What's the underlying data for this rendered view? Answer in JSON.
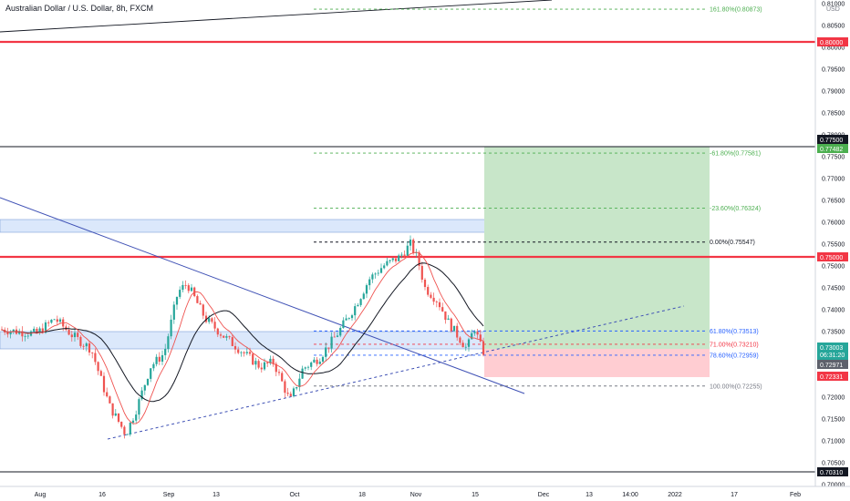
{
  "header": {
    "title": "Australian Dollar / U.S. Dollar, 8h, FXCM"
  },
  "price_axis": {
    "currency_label": "USD",
    "ticks": [
      "0.81000",
      "0.80500",
      "0.80000",
      "0.79500",
      "0.79000",
      "0.78500",
      "0.78000",
      "0.77500",
      "0.77000",
      "0.76500",
      "0.76000",
      "0.75500",
      "0.75000",
      "0.74500",
      "0.74000",
      "0.73500",
      "0.73000",
      "0.72500",
      "0.72000",
      "0.71500",
      "0.71000",
      "0.70500",
      "0.70000"
    ]
  },
  "time_axis": {
    "ticks": [
      "Aug",
      "16",
      "Sep",
      "13",
      "Oct",
      "18",
      "Nov",
      "15",
      "Dec",
      "13",
      "14:00",
      "2022",
      "17",
      "Feb"
    ]
  },
  "price_tags": {
    "p0800": "0.80000",
    "p0775": "0.77500",
    "p07748": "0.77482",
    "p0750": "0.75000",
    "last_price": "0.73003",
    "countdown": "06:31:20",
    "p07297": "0.72971",
    "p07233": "0.72331",
    "p0703": "0.70310"
  },
  "fib_levels": [
    {
      "label": "161.80%(0.80873)",
      "price": 0.80873,
      "color": "#4caf50"
    },
    {
      "label": "-61.80%(0.77581)",
      "price": 0.77581,
      "color": "#4caf50"
    },
    {
      "label": "-23.60%(0.76324)",
      "price": 0.76324,
      "color": "#4caf50"
    },
    {
      "label": "0.00%(0.75547)",
      "price": 0.75547,
      "color": "#131722"
    },
    {
      "label": "61.80%(0.73513)",
      "price": 0.73513,
      "color": "#2962ff"
    },
    {
      "label": "71.00%(0.73210)",
      "price": 0.7321,
      "color": "#f23645"
    },
    {
      "label": "78.60%(0.72959)",
      "price": 0.72959,
      "color": "#2962ff"
    },
    {
      "label": "100.00%(0.72255)",
      "price": 0.72255,
      "color": "#787b86"
    }
  ],
  "colors": {
    "bull": "#26a69a",
    "bear": "#ef5350",
    "resistance": "#f23645",
    "support_zone": "#dbe8fb",
    "profit_zone": "#c8e6c9",
    "loss_zone": "#ffcdd2",
    "ma_fast": "#ef5350",
    "ma_slow": "#131722",
    "trendline": "#3f51b5"
  }
}
